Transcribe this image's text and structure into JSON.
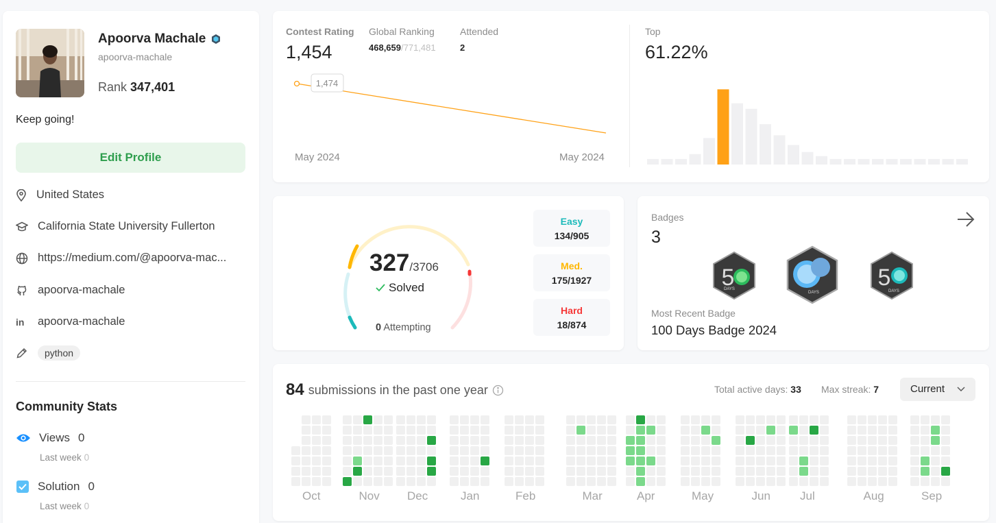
{
  "profile": {
    "name": "Apoorva Machale",
    "username": "apoorva-machale",
    "rank_label": "Rank",
    "rank_value": "347,401",
    "bio": "Keep going!",
    "edit_label": "Edit Profile",
    "location": "United States",
    "school": "California State University Fullerton",
    "website": "https://medium.com/@apoorva-mac...",
    "github": "apoorva-machale",
    "linkedin": "apoorva-machale",
    "skill_tag": "python"
  },
  "community": {
    "title": "Community Stats",
    "views_label": "Views",
    "views_value": "0",
    "views_sub_label": "Last week",
    "views_sub_value": "0",
    "solution_label": "Solution",
    "solution_value": "0",
    "solution_sub_label": "Last week",
    "solution_sub_value": "0"
  },
  "contest": {
    "rating_label": "Contest Rating",
    "rating_value": "1,454",
    "global_label": "Global Ranking",
    "global_value": "468,659",
    "global_total": "/771,481",
    "attended_label": "Attended",
    "attended_value": "2",
    "tooltip_value": "1,474",
    "x_start": "May 2024",
    "x_end": "May 2024",
    "top_label": "Top",
    "top_value": "61.22%",
    "accent": "#ffa116"
  },
  "chart_data": {
    "type": "bar",
    "title": "",
    "values": [
      8,
      8,
      8,
      15,
      38,
      108,
      88,
      80,
      58,
      42,
      28,
      18,
      12,
      8,
      8,
      8,
      8,
      8,
      8,
      8,
      8,
      8,
      8
    ],
    "highlight_index": 5,
    "note": "contest rating distribution; highlighted bar = user's bucket"
  },
  "solved": {
    "solved_value": "327",
    "total": "/3706",
    "solved_label": "Solved",
    "attempting_value": "0",
    "attempting_label": "Attempting",
    "easy_label": "Easy",
    "easy_value": "134/905",
    "med_label": "Med.",
    "med_value": "175/1927",
    "hard_label": "Hard",
    "hard_value": "18/874",
    "easy_color": "#1cbaba",
    "med_color": "#ffb700",
    "hard_color": "#f63737"
  },
  "badges": {
    "label": "Badges",
    "count": "3",
    "recent_label": "Most Recent Badge",
    "recent_name": "100 Days Badge 2024",
    "badge1_text": "DAYS",
    "badge2_text": "DAYS",
    "badge3_text": "DAYS",
    "badge_digit": "5"
  },
  "submissions": {
    "count": "84",
    "text": "submissions in the past one year",
    "active_label": "Total active days:",
    "active_value": "33",
    "streak_label": "Max streak:",
    "streak_value": "7",
    "period": "Current",
    "months": [
      "Oct",
      "Nov",
      "Dec",
      "Jan",
      "Feb",
      "Mar",
      "Apr",
      "May",
      "Jun",
      "Jul",
      "Aug",
      "Sep"
    ]
  }
}
